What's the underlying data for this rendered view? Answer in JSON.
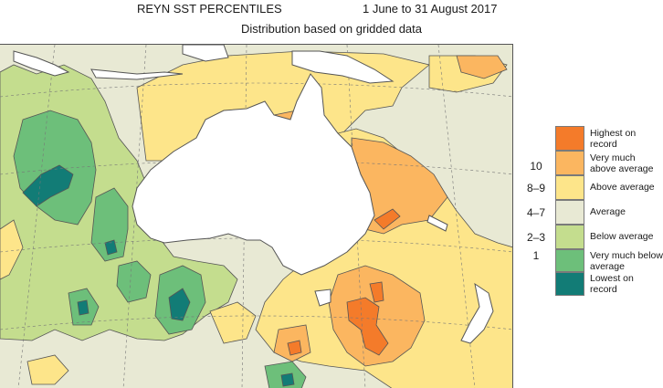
{
  "header": {
    "title": "REYN SST PERCENTILES",
    "period": "1 June to 31 August 2017",
    "subtitle": "Distribution based on gridded data"
  },
  "legend": {
    "items": [
      {
        "code": "",
        "label": "Highest on record",
        "color": "#f47b2a"
      },
      {
        "code": "10",
        "label": "Very much above average",
        "color": "#fbb660"
      },
      {
        "code": "8–9",
        "label": "Above average",
        "color": "#fde58a"
      },
      {
        "code": "4–7",
        "label": "Average",
        "color": "#e8e9d4"
      },
      {
        "code": "2–3",
        "label": "Below average",
        "color": "#c4dd8e"
      },
      {
        "code": "1",
        "label": "Very much below average",
        "color": "#6dbf7a"
      },
      {
        "code": "",
        "label": "Lowest on record",
        "color": "#127c76"
      }
    ]
  },
  "map": {
    "land_color": "#ffffff",
    "coast_color": "#555555",
    "contour_color": "#555555"
  }
}
